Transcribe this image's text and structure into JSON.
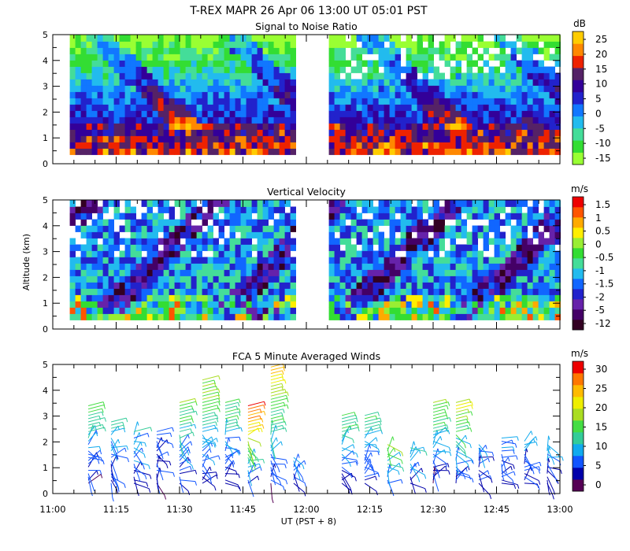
{
  "header": {
    "title": "T-REX  MAPR 26 Apr 06  13:00 UT  05:01  PST"
  },
  "colors": {
    "snr": [
      "#99ff33",
      "#33dd33",
      "#44dd99",
      "#22bbee",
      "#1177ff",
      "#2222cc",
      "#330099",
      "#552266",
      "#ee2200",
      "#ff8800",
      "#ffcc00"
    ],
    "vel": [
      "#330022",
      "#440066",
      "#6622aa",
      "#2222cc",
      "#1166ff",
      "#22bbee",
      "#44dd99",
      "#33dd33",
      "#99ee33",
      "#ffee00",
      "#ffaa00",
      "#ff5500",
      "#ee0000"
    ],
    "wind": [
      "#550055",
      "#0000aa",
      "#1155ff",
      "#11aaee",
      "#33cc99",
      "#44dd44",
      "#aadd22",
      "#eeee00",
      "#ffbb00",
      "#ff7700",
      "#ee0000"
    ]
  },
  "chart_data": [
    {
      "type": "heatmap",
      "title": "Signal to Noise Ratio",
      "ylabel": "",
      "xlabel": "",
      "ylim": [
        0,
        5
      ],
      "yticks": [
        "0",
        "1",
        "2",
        "3",
        "4",
        "5"
      ],
      "colorbar": {
        "unit": "dB",
        "labels": [
          "25",
          "20",
          "15",
          "10",
          "5",
          "0",
          "-5",
          "-10",
          "-15"
        ]
      },
      "data_gaps": [
        [
          12.0,
          12.1
        ]
      ],
      "x_start": 11.0,
      "x_end": 13.0
    },
    {
      "type": "heatmap",
      "title": "Vertical Velocity",
      "ylabel": "Altitude (km)",
      "xlabel": "",
      "ylim": [
        0,
        5
      ],
      "yticks": [
        "0",
        "1",
        "2",
        "3",
        "4",
        "5"
      ],
      "colorbar": {
        "unit": "m/s",
        "labels": [
          "1.5",
          "1",
          "0.5",
          "0",
          "-0.5",
          "-1",
          "-1.5",
          "-2",
          "-5",
          "-12"
        ]
      },
      "data_gaps": [
        [
          12.0,
          12.1
        ]
      ],
      "x_start": 11.0,
      "x_end": 13.0
    },
    {
      "type": "scatter",
      "title": "FCA 5 Minute Averaged Winds",
      "xlabel": "UT  (PST + 8)",
      "ylabel": "",
      "ylim": [
        0,
        5
      ],
      "yticks": [
        "0",
        "1",
        "2",
        "3",
        "4",
        "5"
      ],
      "xticks": [
        "11:00",
        "11:15",
        "11:30",
        "11:45",
        "12:00",
        "12:15",
        "12:30",
        "12:45",
        "13:00"
      ],
      "colorbar": {
        "unit": "m/s",
        "labels": [
          "30",
          "25",
          "20",
          "15",
          "10",
          "5",
          "0"
        ]
      },
      "profile_times": [
        11.14,
        11.23,
        11.32,
        11.41,
        11.5,
        11.59,
        11.68,
        11.77,
        11.86,
        11.95,
        12.14,
        12.23,
        12.32,
        12.41,
        12.5,
        12.59,
        12.68,
        12.77,
        12.86,
        12.95
      ],
      "profile_tops_km": [
        3.5,
        2.8,
        2.5,
        2.4,
        3.6,
        4.5,
        3.6,
        3.5,
        4.9,
        1.5,
        3.1,
        3.1,
        2.0,
        1.8,
        3.6,
        3.6,
        2.0,
        2.2,
        2.1,
        1.9
      ],
      "profile_peak_speed": [
        16,
        11,
        10,
        7,
        17,
        19,
        15,
        30,
        24,
        9,
        15,
        14,
        19,
        12,
        18,
        20,
        8,
        9,
        10,
        8
      ]
    }
  ]
}
